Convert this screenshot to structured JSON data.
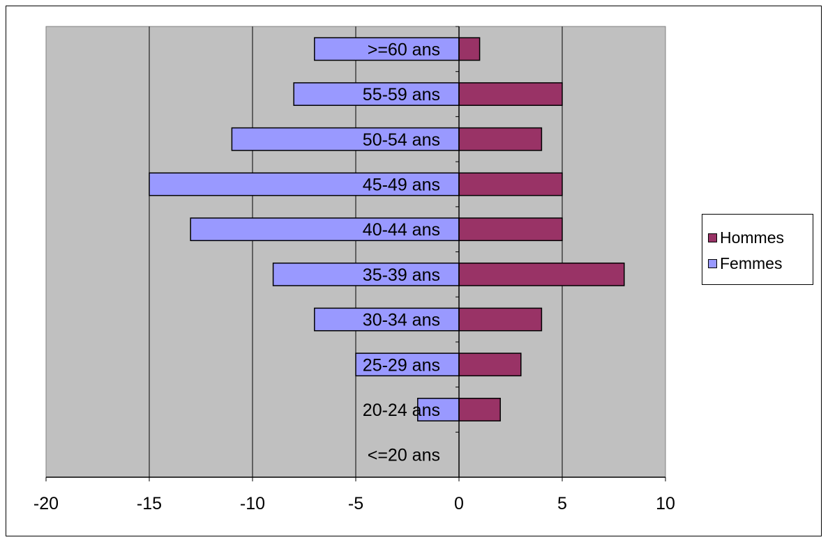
{
  "chart_data": {
    "type": "bar",
    "orientation": "horizontal",
    "categories": [
      ">=60 ans",
      "55-59 ans",
      "50-54 ans",
      "45-49 ans",
      "40-44 ans",
      "35-39 ans",
      "30-34 ans",
      "25-29 ans",
      "20-24 ans",
      "<=20 ans"
    ],
    "series": [
      {
        "name": "Hommes",
        "color": "#993366",
        "values": [
          1,
          5,
          4,
          5,
          5,
          8,
          4,
          3,
          2,
          0
        ]
      },
      {
        "name": "Femmes",
        "color": "#9999ff",
        "values": [
          -7,
          -8,
          -11,
          -15,
          -13,
          -9,
          -7,
          -5,
          -2,
          0
        ]
      }
    ],
    "xlim": [
      -20,
      10
    ],
    "xticks": [
      -20,
      -15,
      -10,
      -5,
      0,
      5,
      10
    ],
    "xtick_labels": [
      "-20",
      "-15",
      "-10",
      "-5",
      "0",
      "5",
      "10"
    ],
    "plot_background": "#c0c0c0",
    "grid": "vertical major gridlines",
    "legend_position": "right"
  },
  "legend": {
    "hommes_label": "Hommes",
    "femmes_label": "Femmes"
  }
}
